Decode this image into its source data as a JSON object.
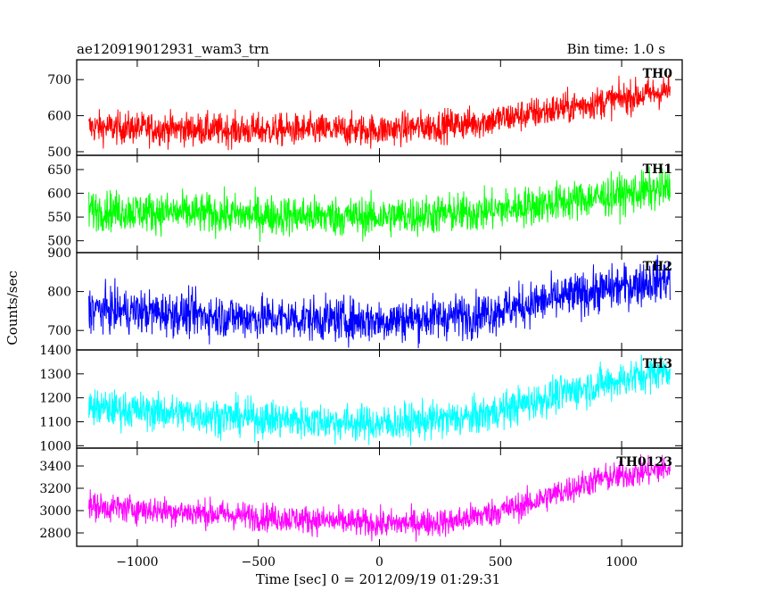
{
  "chart_data": {
    "type": "line",
    "title": "ae120919012931_wam3_trn",
    "bin_time": "Bin time: 1.0 s",
    "xlabel": "Time [sec] 0 = 2012/09/19 01:29:31",
    "ylabel": "Counts/sec",
    "xlim": [
      -1250,
      1250
    ],
    "x_data_range": [
      -1200,
      1200
    ],
    "xticks": [
      -1000,
      -500,
      0,
      500,
      1000
    ],
    "xtick_labels": [
      "−1000",
      "−500",
      "0",
      "500",
      "1000"
    ],
    "grid": false,
    "panels": [
      {
        "name": "TH0",
        "color": "#ff0000",
        "ylim": [
          490,
          755
        ],
        "yticks": [
          500,
          600,
          700
        ],
        "trend_x": [
          -1200,
          -600,
          0,
          400,
          800,
          1200
        ],
        "trend_y": [
          568,
          560,
          560,
          580,
          625,
          670
        ],
        "spread": 32
      },
      {
        "name": "TH1",
        "color": "#00ff00",
        "ylim": [
          475,
          680
        ],
        "yticks": [
          500,
          550,
          600,
          650
        ],
        "trend_x": [
          -1200,
          -600,
          0,
          400,
          800,
          1200
        ],
        "trend_y": [
          565,
          555,
          550,
          560,
          585,
          610
        ],
        "spread": 30
      },
      {
        "name": "TH2",
        "color": "#0000ff",
        "ylim": [
          650,
          900
        ],
        "yticks": [
          700,
          800,
          900
        ],
        "trend_x": [
          -1200,
          -600,
          0,
          400,
          800,
          1200
        ],
        "trend_y": [
          755,
          735,
          725,
          740,
          790,
          835
        ],
        "spread": 40
      },
      {
        "name": "TH3",
        "color": "#00ffff",
        "ylim": [
          990,
          1400
        ],
        "yticks": [
          1000,
          1100,
          1200,
          1300,
          1400
        ],
        "trend_x": [
          -1200,
          -600,
          0,
          400,
          800,
          1200
        ],
        "trend_y": [
          1160,
          1120,
          1090,
          1120,
          1230,
          1320
        ],
        "spread": 55
      },
      {
        "name": "TH0123",
        "color": "#ff00ff",
        "ylim": [
          2680,
          3560
        ],
        "yticks": [
          2800,
          3000,
          3200,
          3400
        ],
        "trend_x": [
          -1200,
          -600,
          0,
          300,
          600,
          900,
          1200
        ],
        "trend_y": [
          3040,
          2960,
          2880,
          2900,
          3050,
          3280,
          3380
        ],
        "spread": 90
      }
    ]
  }
}
